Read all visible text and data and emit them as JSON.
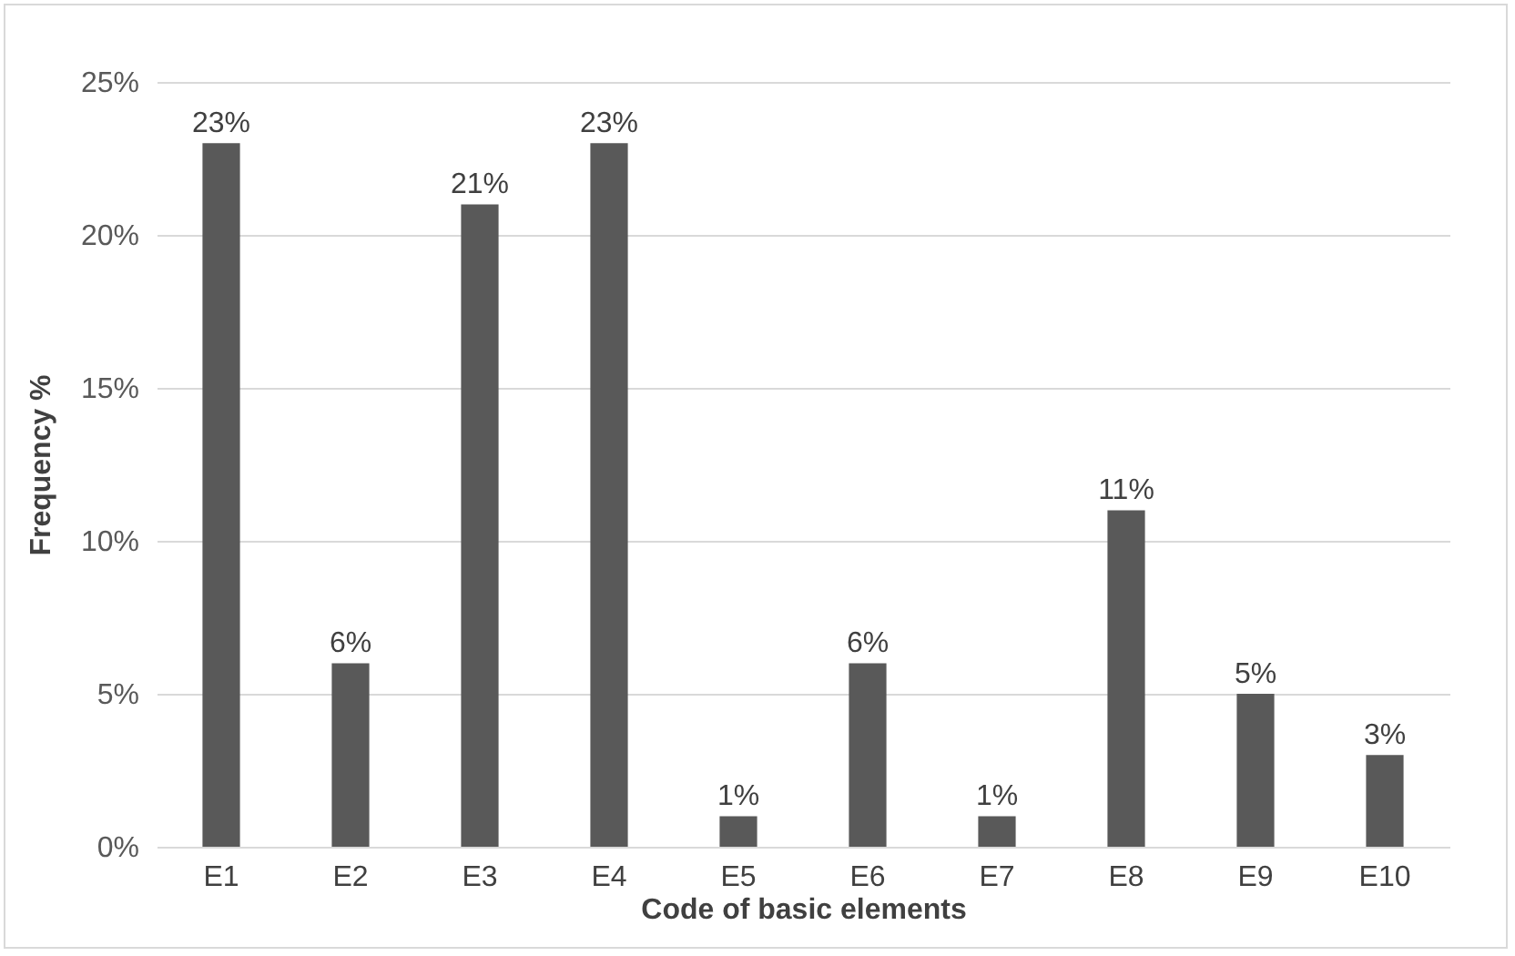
{
  "chart_data": {
    "type": "bar",
    "xlabel": "Code of basic elements",
    "ylabel": "Frequency %",
    "categories": [
      "E1",
      "E2",
      "E3",
      "E4",
      "E5",
      "E6",
      "E7",
      "E8",
      "E9",
      "E10"
    ],
    "values": [
      23,
      6,
      21,
      23,
      1,
      6,
      1,
      11,
      5,
      3
    ],
    "value_labels": [
      "23%",
      "6%",
      "21%",
      "23%",
      "1%",
      "6%",
      "1%",
      "11%",
      "5%",
      "3%"
    ],
    "color": "#595959",
    "ylim": [
      0,
      25
    ],
    "yticks": [
      {
        "value": 0,
        "label": "0%"
      },
      {
        "value": 5,
        "label": "5%"
      },
      {
        "value": 10,
        "label": "10%"
      },
      {
        "value": 15,
        "label": "15%"
      },
      {
        "value": 20,
        "label": "20%"
      },
      {
        "value": 25,
        "label": "25%"
      }
    ],
    "grid": "y"
  }
}
